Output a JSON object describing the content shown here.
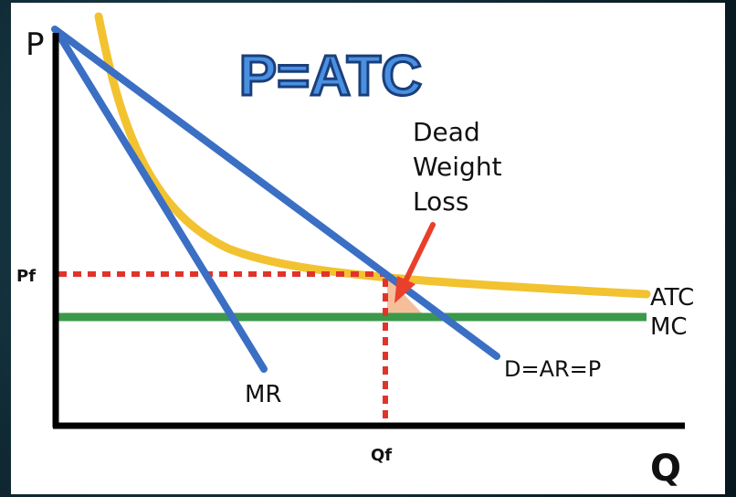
{
  "title": "P=ATC",
  "axes": {
    "y_label": "P",
    "x_label": "Q",
    "price_tick": "Pf",
    "quantity_tick": "Qf"
  },
  "curves": {
    "atc": "ATC",
    "mc": "MC",
    "demand": "D=AR=P",
    "mr": "MR"
  },
  "annotation": {
    "line1": "Dead",
    "line2": "Weight",
    "line3": "Loss"
  },
  "colors": {
    "demand": "#3a6fc4",
    "mr": "#3a6fc4",
    "atc": "#f2c230",
    "mc": "#3a9a4a",
    "guide": "#e0342a",
    "arrow": "#e8402a",
    "deadweight": "#f4b48a",
    "title_fill": "#4a90e2",
    "title_stroke": "#1a3f7a"
  },
  "icons": {
    "pointer": "arrow-icon"
  }
}
